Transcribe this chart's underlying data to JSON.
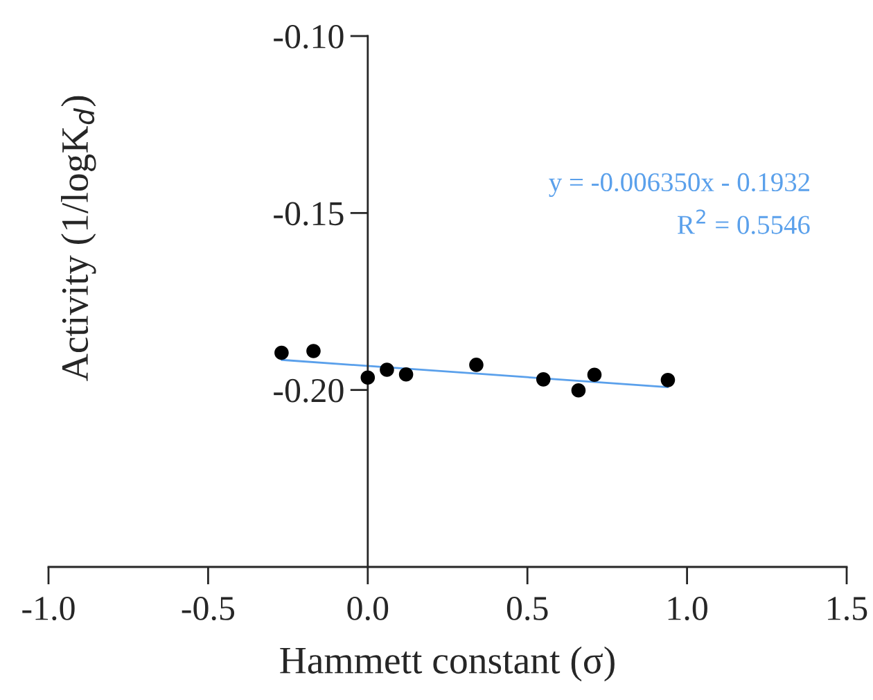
{
  "chart_data": {
    "type": "scatter",
    "xlabel": "Hammett constant (σ)",
    "ylabel": "Activity (1/logK$_{d}$)",
    "series": [
      {
        "color": "#000000",
        "marker": "circle",
        "x": [
          -0.27,
          -0.17,
          0.0,
          0.06,
          0.12,
          0.34,
          0.55,
          0.66,
          0.71,
          0.94
        ],
        "values": [
          -0.1895,
          -0.189,
          -0.1965,
          -0.1943,
          -0.1956,
          -0.1929,
          -0.197,
          -0.2001,
          -0.1957,
          -0.1972
        ]
      },
      {
        "type": "line",
        "color": "#5aa0eb",
        "marker": "none",
        "x": [
          -0.27,
          0.94
        ],
        "values": [
          -0.1915,
          -0.1992
        ]
      }
    ],
    "annotations": [
      "y = -0.006350x - 0.1932",
      "R$^{2}$ = 0.5546"
    ],
    "xlim": [
      -1.0,
      1.5
    ],
    "xticks": [
      {
        "value": -1.0,
        "label": "-1.0"
      },
      {
        "value": -0.5,
        "label": "-0.5"
      },
      {
        "value": 0.0,
        "label": "0.0"
      },
      {
        "value": 0.5,
        "label": "0.5"
      },
      {
        "value": 1.0,
        "label": "1.0"
      },
      {
        "value": 1.5,
        "label": "1.5"
      }
    ],
    "ylim": [
      -0.25,
      -0.1
    ],
    "yticks": [
      {
        "value": -0.1,
        "label": "-0.10"
      },
      {
        "value": -0.15,
        "label": "-0.15"
      },
      {
        "value": -0.2,
        "label": "-0.20"
      }
    ],
    "grid": false,
    "legend": false
  }
}
